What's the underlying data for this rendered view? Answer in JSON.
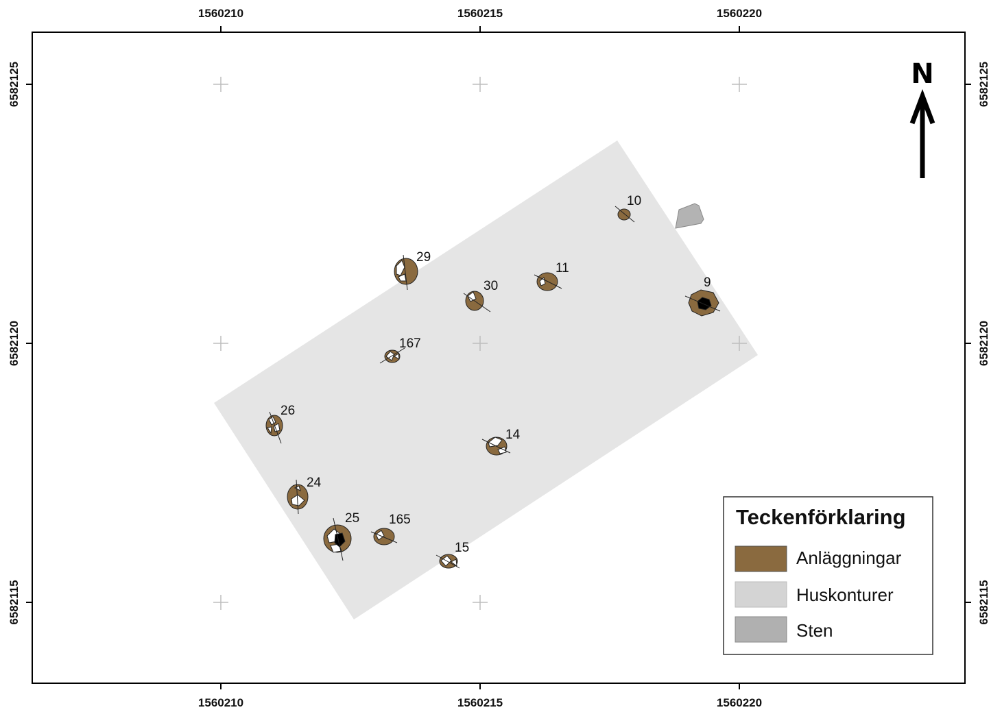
{
  "map": {
    "top_ticks": [
      "1560210",
      "1560215",
      "1560220"
    ],
    "bottom_ticks": [
      "1560210",
      "1560215",
      "1560220"
    ],
    "left_ticks": [
      "6582125",
      "6582120",
      "6582115"
    ],
    "right_ticks": [
      "6582125",
      "6582120",
      "6582115"
    ],
    "north_label": "N",
    "features": [
      {
        "id": "10",
        "label": "10"
      },
      {
        "id": "29",
        "label": "29"
      },
      {
        "id": "11",
        "label": "11"
      },
      {
        "id": "30",
        "label": "30"
      },
      {
        "id": "9",
        "label": "9"
      },
      {
        "id": "167",
        "label": "167"
      },
      {
        "id": "26",
        "label": "26"
      },
      {
        "id": "14",
        "label": "14"
      },
      {
        "id": "24",
        "label": "24"
      },
      {
        "id": "25",
        "label": "25"
      },
      {
        "id": "165",
        "label": "165"
      },
      {
        "id": "15",
        "label": "15"
      }
    ]
  },
  "legend": {
    "title": "Teckenförklaring",
    "items": [
      {
        "label": "Anläggningar",
        "color": "#8a6a3f"
      },
      {
        "label": "Huskonturer",
        "color": "#d4d4d4"
      },
      {
        "label": "Sten",
        "color": "#b0b0b0"
      }
    ]
  },
  "colors": {
    "feature_fill": "#8a6a3f",
    "house_outline_fill": "#e5e5e5",
    "stone_fill": "#b3b3b3",
    "frame": "#000000"
  }
}
